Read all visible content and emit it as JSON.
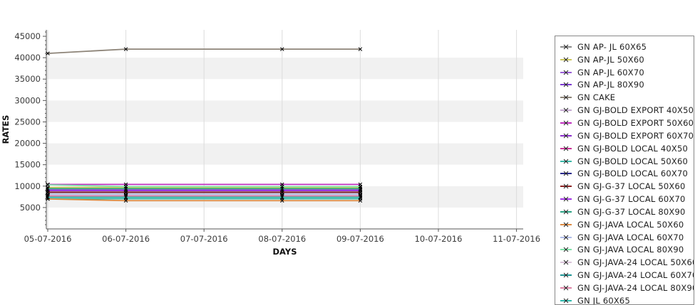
{
  "chart_data": {
    "type": "line",
    "title": "",
    "xlabel": "DAYS",
    "ylabel": "RATES",
    "x_tick_labels": [
      "05-07-2016",
      "06-07-2016",
      "07-07-2016",
      "08-07-2016",
      "09-07-2016",
      "10-07-2016",
      "11-07-2016"
    ],
    "data_dates": [
      "05-07-2016",
      "06-07-2016",
      "08-07-2016",
      "09-07-2016"
    ],
    "data_date_tick_index": [
      0,
      1,
      3,
      4
    ],
    "y_ticks": [
      5000,
      10000,
      15000,
      20000,
      25000,
      30000,
      35000,
      40000,
      45000
    ],
    "ylim": [
      0,
      46500
    ],
    "grid": {
      "vertical_gridlines": true,
      "alternating_bands": true,
      "band_color": "#f1f1f1"
    },
    "legend_position": "right",
    "marker": "x",
    "marker_color": "#000000",
    "series": [
      {
        "name": "GN AP- JL 60X65",
        "color": "#8c8c8c",
        "values": [
          8500,
          8500,
          8500,
          8500
        ]
      },
      {
        "name": "GN AP-JL 50X60",
        "color": "#cdc85c",
        "values": [
          9700,
          9700,
          9700,
          9700
        ]
      },
      {
        "name": "GN AP-JL 60X70",
        "color": "#9a5fd6",
        "values": [
          9000,
          9000,
          9000,
          9000
        ]
      },
      {
        "name": "GN AP-JL 80X90",
        "color": "#7c3ad0",
        "values": [
          8950,
          8950,
          8950,
          8950
        ]
      },
      {
        "name": "GN CAKE",
        "color": "#8d8478",
        "values": [
          41000,
          42000,
          42000,
          42000
        ]
      },
      {
        "name": "GN GJ-BOLD EXPORT 40X50",
        "color": "#c5aad2",
        "values": [
          8050,
          8050,
          8050,
          8050
        ]
      },
      {
        "name": "GN GJ-BOLD EXPORT 50X60",
        "color": "#bf30bf",
        "values": [
          10400,
          10400,
          10400,
          10400
        ]
      },
      {
        "name": "GN GJ-BOLD EXPORT 60X70",
        "color": "#8c30cc",
        "values": [
          9100,
          9100,
          9100,
          9100
        ]
      },
      {
        "name": "GN GJ-BOLD LOCAL 40X50",
        "color": "#cc3399",
        "values": [
          7900,
          8000,
          8000,
          8000
        ]
      },
      {
        "name": "GN GJ-BOLD LOCAL 50X60",
        "color": "#3ab8a8",
        "values": [
          7050,
          7050,
          7050,
          7050
        ]
      },
      {
        "name": "GN GJ-BOLD LOCAL 60X70",
        "color": "#2b2b8c",
        "values": [
          8550,
          8550,
          8550,
          8550
        ]
      },
      {
        "name": "GN GJ-G-37 LOCAL 50X60",
        "color": "#8c2626",
        "values": [
          8600,
          8600,
          8600,
          8600
        ]
      },
      {
        "name": "GN GJ-G-37 LOCAL 60X70",
        "color": "#a333e6",
        "values": [
          9050,
          9050,
          9050,
          9050
        ]
      },
      {
        "name": "GN GJ-G-37 LOCAL 80X90",
        "color": "#2da385",
        "values": [
          9400,
          9400,
          9400,
          9400
        ]
      },
      {
        "name": "GN GJ-JAVA LOCAL 50X60",
        "color": "#dd8c44",
        "values": [
          7000,
          6600,
          6600,
          6600
        ]
      },
      {
        "name": "GN GJ-JAVA LOCAL 60X70",
        "color": "#b0bce8",
        "values": [
          8000,
          8000,
          8000,
          8000
        ]
      },
      {
        "name": "GN GJ-JAVA LOCAL 80X90",
        "color": "#7fe3a9",
        "values": [
          10300,
          9900,
          9900,
          9900
        ]
      },
      {
        "name": "GN GJ-JAVA-24 LOCAL 50X60",
        "color": "#d9c4d9",
        "values": [
          7800,
          7800,
          7800,
          7800
        ]
      },
      {
        "name": "GN GJ-JAVA-24 LOCAL 60X70",
        "color": "#1f9494",
        "values": [
          7450,
          7450,
          7450,
          7450
        ]
      },
      {
        "name": "GN GJ-JAVA-24 LOCAL 80X90",
        "color": "#de82a6",
        "values": [
          7700,
          7700,
          7700,
          7700
        ]
      },
      {
        "name": "GN JL 60X65",
        "color": "#2fb9ac",
        "values": [
          7400,
          7400,
          7400,
          7400
        ]
      }
    ]
  },
  "axes_text": {
    "y_axis_label": "RATES",
    "x_axis_label": "DAYS"
  },
  "colors": {
    "axis_line": "#555555",
    "tick_text": "#3a3a3a",
    "gridline": "#dcdcdc",
    "band": "#f1f1f1",
    "legend_border": "#888888"
  }
}
